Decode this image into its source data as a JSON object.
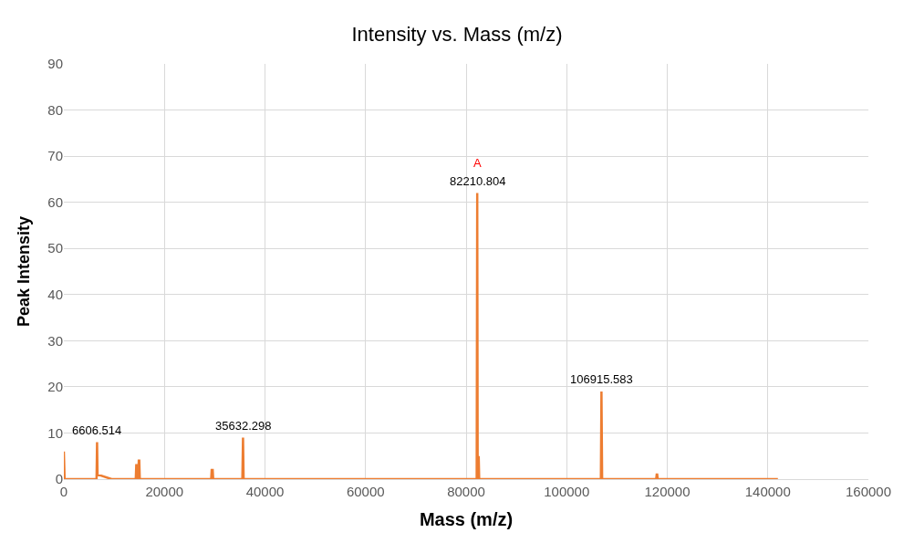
{
  "chart_data": {
    "type": "line",
    "title": "Intensity vs. Mass (m/z)",
    "xlabel": "Mass (m/z)",
    "ylabel": "Peak Intensity",
    "xlim": [
      0,
      160000
    ],
    "xticks": [
      0,
      20000,
      40000,
      60000,
      80000,
      100000,
      120000,
      140000,
      160000
    ],
    "ylim": [
      0,
      90
    ],
    "yticks": [
      0,
      10,
      20,
      30,
      40,
      50,
      60,
      70,
      80,
      90
    ],
    "grid": true,
    "marker": "none",
    "line_style": "solid",
    "series": [
      {
        "color": "#ed7d31",
        "x": [
          0,
          150,
          6500,
          6606.514,
          6700,
          9500,
          14300,
          14400,
          14500,
          14650,
          14800,
          14900,
          15000,
          15100,
          29300,
          29400,
          29600,
          29700,
          35500,
          35632.298,
          35750,
          82100,
          82210.804,
          82300,
          82400,
          82500,
          82600,
          106800,
          106915.583,
          107050,
          117800,
          117900,
          118000,
          118100,
          142000
        ],
        "values": [
          6,
          0,
          0,
          8,
          1,
          0,
          0,
          3,
          3,
          0,
          0,
          4,
          4,
          0,
          0,
          2,
          2,
          0,
          0,
          9,
          0,
          0,
          62,
          0,
          0,
          5,
          0,
          0,
          19,
          0,
          0,
          1,
          1,
          0,
          0
        ]
      }
    ],
    "annotations": [
      {
        "text": "6606.514",
        "x": 6606.514,
        "y": 8
      },
      {
        "text": "35632.298",
        "x": 35632.298,
        "y": 9
      },
      {
        "text": "82210.804",
        "x": 82210.804,
        "y": 62
      },
      {
        "text": "A",
        "x": 82210.804,
        "y": 62
      },
      {
        "text": "106915.583",
        "x": 106915.583,
        "y": 19
      }
    ]
  }
}
